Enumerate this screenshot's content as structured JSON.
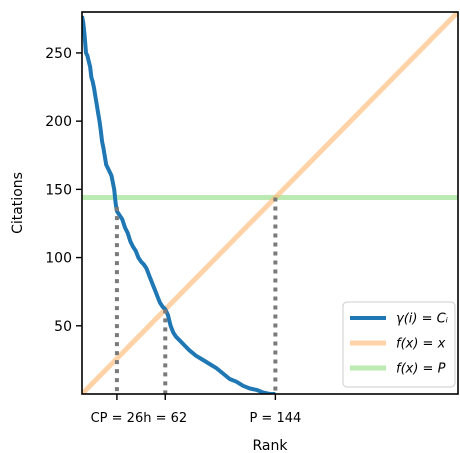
{
  "chart_data": {
    "type": "line",
    "xlabel": "Rank",
    "ylabel": "Citations",
    "xlim": [
      0,
      280
    ],
    "ylim": [
      0,
      280
    ],
    "yticks": [
      50,
      100,
      150,
      200,
      250
    ],
    "grid": false,
    "legend_position": "bottom-right",
    "series": [
      {
        "name": "γ(i) = Cᵢ",
        "kind": "curve",
        "color": "#1f77b4",
        "x": [
          0,
          1,
          2,
          3,
          4,
          5,
          6,
          7,
          8,
          9,
          10,
          11,
          12,
          13,
          14,
          15,
          16,
          18,
          20,
          22,
          24,
          25,
          26,
          28,
          30,
          32,
          34,
          36,
          38,
          40,
          42,
          44,
          46,
          48,
          50,
          52,
          54,
          56,
          58,
          60,
          62,
          64,
          66,
          68,
          70,
          72,
          75,
          78,
          80,
          85,
          90,
          95,
          100,
          105,
          110,
          115,
          120,
          125,
          130,
          135,
          140,
          144
        ],
        "y": [
          277,
          272,
          262,
          250,
          248,
          244,
          240,
          232,
          229,
          224,
          218,
          212,
          206,
          200,
          193,
          185,
          180,
          168,
          164,
          160,
          150,
          140,
          134,
          131,
          128,
          122,
          118,
          112,
          108,
          105,
          100,
          97,
          95,
          92,
          87,
          82,
          77,
          72,
          67,
          64,
          62,
          58,
          50,
          45,
          42,
          40,
          37,
          34,
          32,
          28,
          25,
          22,
          19,
          15,
          11,
          9,
          6,
          4,
          3,
          1,
          0,
          0
        ]
      },
      {
        "name": "f(x) = x",
        "kind": "identity",
        "color": "#ffbb78",
        "x": [
          0,
          280
        ],
        "y": [
          0,
          280
        ]
      },
      {
        "name": "f(x) = P",
        "kind": "constant",
        "color": "#98df8a",
        "value": 144
      }
    ],
    "annotations": [
      {
        "label": "CP = 26",
        "x": 26,
        "y_top": 137
      },
      {
        "label": "h = 62",
        "x": 62,
        "y_top": 62
      },
      {
        "label": "P = 144",
        "x": 144,
        "y_top": 144
      }
    ]
  }
}
